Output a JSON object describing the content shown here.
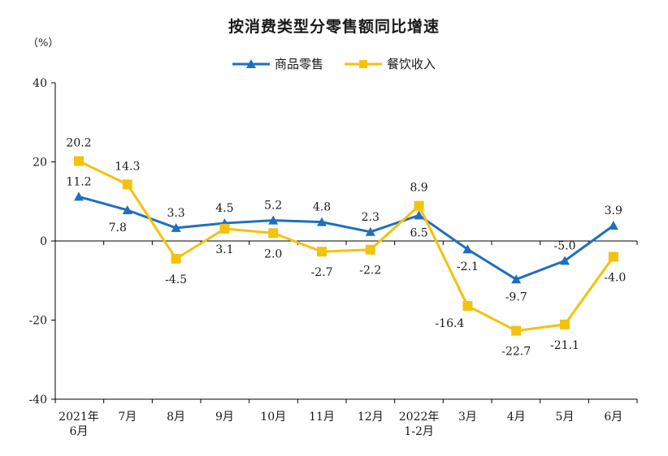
{
  "chart_data": {
    "type": "line",
    "title": "按消费类型分零售额同比增速",
    "ylabel": "（%）",
    "ylim": [
      -40,
      40
    ],
    "yticks": [
      40,
      20,
      0,
      -20,
      -40
    ],
    "categories": [
      [
        "2021年",
        "6月"
      ],
      [
        "7月"
      ],
      [
        "8月"
      ],
      [
        "9月"
      ],
      [
        "10月"
      ],
      [
        "11月"
      ],
      [
        "12月"
      ],
      [
        "2022年",
        "1-2月"
      ],
      [
        "3月"
      ],
      [
        "4月"
      ],
      [
        "5月"
      ],
      [
        "6月"
      ]
    ],
    "series": [
      {
        "name": "商品零售",
        "color": "#1f6fc0",
        "marker": "triangle",
        "values": [
          11.2,
          7.8,
          3.3,
          4.5,
          5.2,
          4.8,
          2.3,
          6.5,
          -2.1,
          -9.7,
          -5.0,
          3.9
        ],
        "labels": [
          "11.2",
          "7.8",
          "3.3",
          "4.5",
          "5.2",
          "4.8",
          "2.3",
          "6.5",
          "-2.1",
          "-9.7",
          "-5.0",
          "3.9"
        ]
      },
      {
        "name": "餐饮收入",
        "color": "#f4c20d",
        "marker": "square",
        "values": [
          20.2,
          14.3,
          -4.5,
          3.1,
          2.0,
          -2.7,
          -2.2,
          8.9,
          -16.4,
          -22.7,
          -21.1,
          -4.0
        ],
        "labels": [
          "20.2",
          "14.3",
          "-4.5",
          "3.1",
          "2.0",
          "-2.7",
          "-2.2",
          "8.9",
          "-16.4",
          "-22.7",
          "-21.1",
          "-4.0"
        ]
      }
    ],
    "legend": "top-center",
    "grid": false
  }
}
